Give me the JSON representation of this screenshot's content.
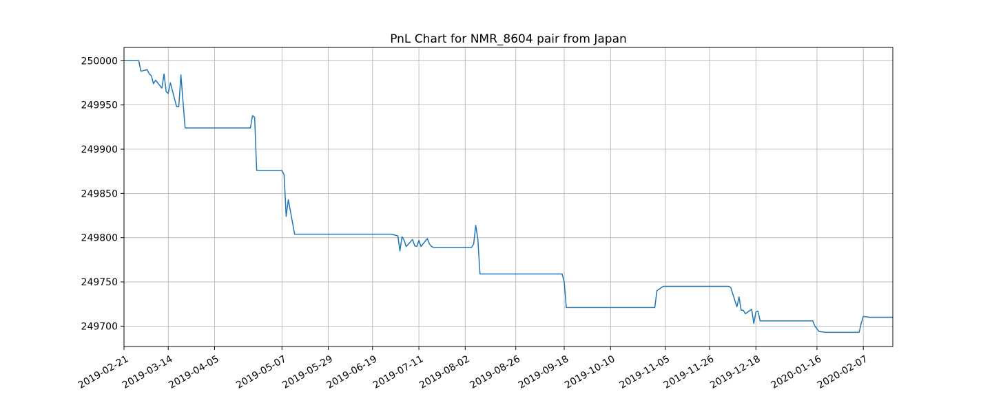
{
  "chart_data": {
    "type": "line",
    "title": "PnL Chart for NMR_8604 pair from Japan",
    "xlabel": "",
    "ylabel": "",
    "x_ticks": [
      "2019-02-21",
      "2019-03-14",
      "2019-04-05",
      "2019-05-07",
      "2019-05-29",
      "2019-06-19",
      "2019-07-11",
      "2019-08-02",
      "2019-08-26",
      "2019-09-18",
      "2019-10-10",
      "2019-11-05",
      "2019-11-26",
      "2019-12-18",
      "2020-01-16",
      "2020-02-07"
    ],
    "y_ticks": [
      "249700",
      "249750",
      "249800",
      "249850",
      "249900",
      "249950",
      "250000"
    ],
    "ylim": [
      249677,
      250015
    ],
    "xlim": [
      "2019-02-21",
      "2020-02-21"
    ],
    "grid": true,
    "legend": "none",
    "series_color": "#1f77b4",
    "series": [
      {
        "x": [
          "2019-02-21",
          "2019-02-28",
          "2019-03-01",
          "2019-03-04",
          "2019-03-05",
          "2019-03-06",
          "2019-03-07",
          "2019-03-08",
          "2019-03-11",
          "2019-03-12",
          "2019-03-13",
          "2019-03-14",
          "2019-03-15",
          "2019-03-18",
          "2019-03-19",
          "2019-03-20",
          "2019-03-22",
          "2019-04-22",
          "2019-04-23",
          "2019-04-24",
          "2019-04-25",
          "2019-05-07",
          "2019-05-08",
          "2019-05-09",
          "2019-05-10",
          "2019-05-13",
          "2019-06-28",
          "2019-07-01",
          "2019-07-02",
          "2019-07-03",
          "2019-07-04",
          "2019-07-05",
          "2019-07-08",
          "2019-07-09",
          "2019-07-10",
          "2019-07-11",
          "2019-07-12",
          "2019-07-15",
          "2019-07-16",
          "2019-07-17",
          "2019-07-18",
          "2019-08-05",
          "2019-08-06",
          "2019-08-07",
          "2019-08-08",
          "2019-08-09",
          "2019-08-12",
          "2019-09-17",
          "2019-09-18",
          "2019-09-19",
          "2019-09-20",
          "2019-10-31",
          "2019-11-01",
          "2019-11-04",
          "2019-11-05",
          "2019-12-05",
          "2019-12-06",
          "2019-12-09",
          "2019-12-10",
          "2019-12-11",
          "2019-12-12",
          "2019-12-13",
          "2019-12-16",
          "2019-12-17",
          "2019-12-18",
          "2019-12-19",
          "2019-12-20",
          "2019-12-23",
          "2020-01-14",
          "2020-01-15",
          "2020-01-16",
          "2020-01-17",
          "2020-01-20",
          "2020-02-05",
          "2020-02-06",
          "2020-02-07",
          "2020-02-10",
          "2020-02-21"
        ],
        "y": [
          250000,
          250000,
          249988,
          249990,
          249985,
          249983,
          249974,
          249978,
          249969,
          249985,
          249965,
          249963,
          249975,
          249948,
          249948,
          249984,
          249924,
          249924,
          249938,
          249936,
          249876,
          249876,
          249871,
          249824,
          249843,
          249804,
          249804,
          249802,
          249785,
          249801,
          249797,
          249790,
          249798,
          249791,
          249790,
          249797,
          249790,
          249799,
          249793,
          249790,
          249789,
          249789,
          249793,
          249814,
          249798,
          249759,
          249759,
          249759,
          249750,
          249721,
          249721,
          249721,
          249740,
          249745,
          249745,
          249745,
          249744,
          249722,
          249733,
          249718,
          249718,
          249714,
          249719,
          249703,
          249716,
          249717,
          249706,
          249706,
          249706,
          249700,
          249697,
          249694,
          249693,
          249693,
          249703,
          249711,
          249710,
          249710
        ]
      }
    ]
  }
}
